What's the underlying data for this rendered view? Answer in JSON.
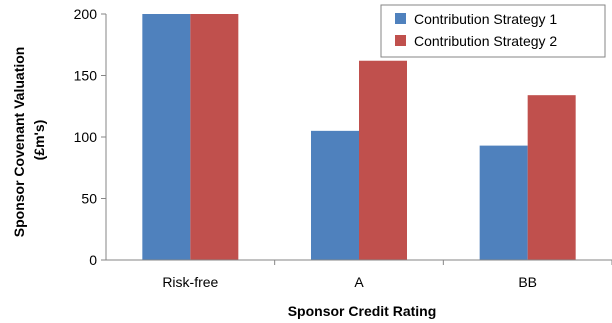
{
  "chart_data": {
    "type": "bar",
    "categories": [
      "Risk-free",
      "A",
      "BB"
    ],
    "series": [
      {
        "name": "Contribution Strategy 1",
        "values": [
          200,
          105,
          93
        ],
        "color": "#4f81bd"
      },
      {
        "name": "Contribution Strategy 2",
        "values": [
          200,
          162,
          134
        ],
        "color": "#c0504d"
      }
    ],
    "title": "",
    "xlabel": "Sponsor Credit Rating",
    "ylabel_line1": "Sponsor Covenant Valuation",
    "ylabel_line2": "(£m's)",
    "ylim": [
      0,
      200
    ],
    "yticks": [
      0,
      50,
      100,
      150,
      200
    ],
    "grid": false,
    "legend_position": "top-right"
  }
}
